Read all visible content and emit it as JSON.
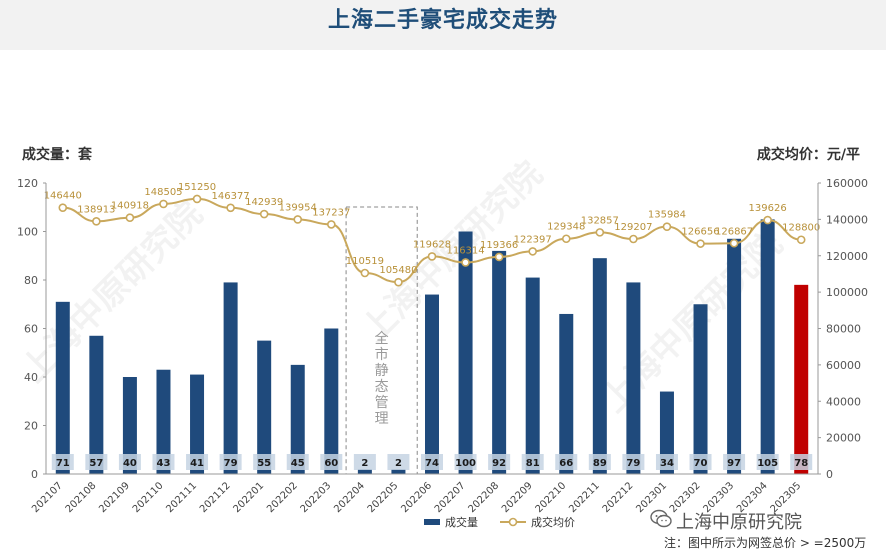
{
  "header": {
    "title": "上海二手豪宅成交走势"
  },
  "axes": {
    "left_label": "成交量：套",
    "right_label": "成交均价：元/平"
  },
  "lockdown_label": "全市静态管理",
  "watermark": "上海中原研究院",
  "brand": "上海中原研究院",
  "note": "注：图中所示为网签总价 > =2500万",
  "colors": {
    "bar": "#1f4a7c",
    "bar_highlight": "#c00000",
    "line": "#c9a85c",
    "line_label": "#b8913a"
  },
  "chart_data": {
    "type": "bar",
    "categories": [
      "202107",
      "202108",
      "202109",
      "202110",
      "202111",
      "202112",
      "202201",
      "202202",
      "202203",
      "202204",
      "202205",
      "202206",
      "202207",
      "202208",
      "202209",
      "202210",
      "202211",
      "202212",
      "202301",
      "202302",
      "202303",
      "202304",
      "202305"
    ],
    "series": [
      {
        "name": "成交量",
        "type": "bar",
        "axis": "left",
        "values": [
          71,
          57,
          40,
          43,
          41,
          79,
          55,
          45,
          60,
          2,
          2,
          74,
          100,
          92,
          81,
          66,
          89,
          79,
          34,
          70,
          97,
          105,
          78
        ]
      },
      {
        "name": "成交均价",
        "type": "line",
        "axis": "right",
        "values": [
          146440,
          138913,
          140918,
          148505,
          151250,
          146377,
          142939,
          139954,
          137237,
          110519,
          105480,
          119628,
          116314,
          119366,
          122397,
          129348,
          132857,
          129207,
          135984,
          126656,
          126867,
          139626,
          128800
        ]
      }
    ],
    "left_axis": {
      "ylim": [
        0,
        120
      ],
      "ticks": [
        0,
        20,
        40,
        60,
        80,
        100,
        120
      ]
    },
    "right_axis": {
      "ylim": [
        0,
        160000
      ],
      "ticks": [
        0,
        20000,
        40000,
        60000,
        80000,
        100000,
        120000,
        140000,
        160000
      ]
    },
    "highlight_last": true,
    "legend": {
      "position": "bottom"
    },
    "grid": false
  }
}
